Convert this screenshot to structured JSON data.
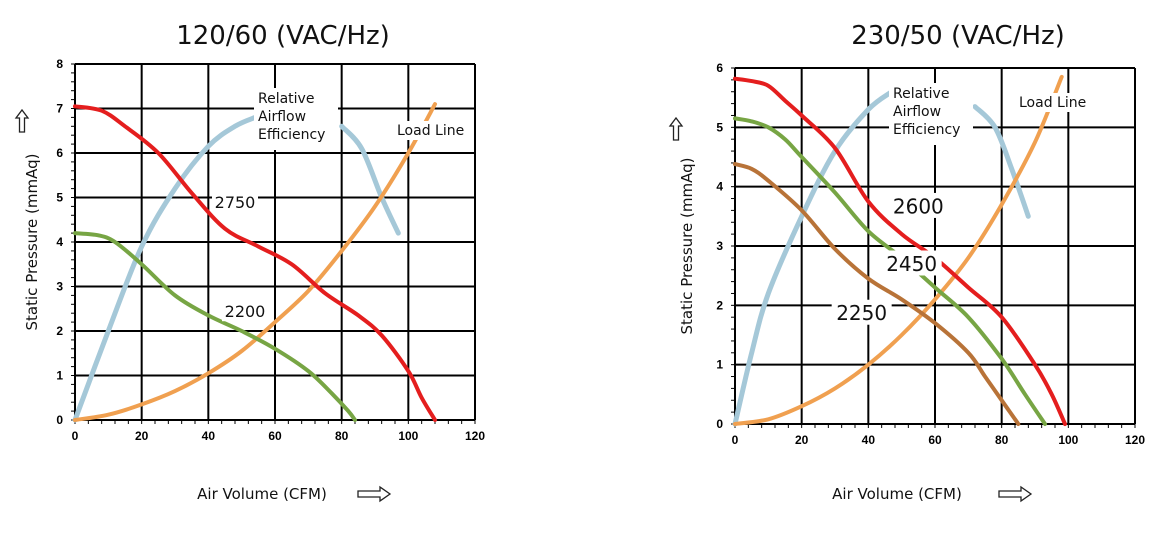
{
  "chart_data": [
    {
      "type": "line",
      "title": "120/60 (VAC/Hz)",
      "xlabel": "Air Volume (CFM)",
      "ylabel": "Static Pressure (mmAq)",
      "xlim": [
        0,
        120
      ],
      "ylim": [
        0,
        8
      ],
      "xticks": [
        "0",
        "20",
        "40",
        "60",
        "80",
        "100",
        "120"
      ],
      "yticks": [
        "0",
        "1",
        "2",
        "3",
        "4",
        "5",
        "6",
        "7",
        "8"
      ],
      "grid": true,
      "annotations": {
        "efficiency": [
          "Relative",
          "Airflow",
          "Efficiency"
        ],
        "load_line": "Load Line"
      },
      "series": [
        {
          "name": "2750",
          "color": "#e41e1e",
          "x": [
            0,
            8,
            15,
            25,
            35,
            45,
            55,
            65,
            75,
            85,
            92,
            100,
            104,
            108
          ],
          "y": [
            7.05,
            6.95,
            6.6,
            6.0,
            5.1,
            4.3,
            3.9,
            3.5,
            2.85,
            2.35,
            1.9,
            1.1,
            0.5,
            0.0
          ]
        },
        {
          "name": "2200",
          "color": "#77a544",
          "x": [
            0,
            7,
            12,
            20,
            30,
            40,
            50,
            60,
            70,
            77,
            82,
            84
          ],
          "y": [
            4.2,
            4.15,
            4.0,
            3.5,
            2.8,
            2.35,
            2.0,
            1.6,
            1.1,
            0.6,
            0.2,
            0.0
          ]
        },
        {
          "name": "Relative Airflow Efficiency",
          "color": "#a5c8d8",
          "x": [
            0,
            10,
            20,
            30,
            40,
            48,
            54,
            80,
            86,
            92,
            97
          ],
          "y": [
            0.0,
            2.0,
            3.9,
            5.2,
            6.15,
            6.6,
            6.8,
            6.6,
            6.1,
            5.0,
            4.2
          ]
        },
        {
          "name": "Load Line",
          "color": "#f0a050",
          "x": [
            0,
            10,
            20,
            30,
            40,
            50,
            60,
            70,
            80,
            90,
            100,
            108
          ],
          "y": [
            0.0,
            0.12,
            0.35,
            0.65,
            1.05,
            1.55,
            2.2,
            2.9,
            3.8,
            4.8,
            6.0,
            7.1
          ]
        }
      ],
      "curve_labels": [
        {
          "text": "2750",
          "x": 48,
          "y": 4.85
        },
        {
          "text": "2200",
          "x": 51,
          "y": 2.4
        }
      ]
    },
    {
      "type": "line",
      "title": "230/50 (VAC/Hz)",
      "xlabel": "Air Volume (CFM)",
      "ylabel": "Static Pressure (mmAq)",
      "xlim": [
        0,
        120
      ],
      "ylim": [
        0,
        6
      ],
      "xticks": [
        "0",
        "20",
        "40",
        "60",
        "80",
        "100",
        "120"
      ],
      "yticks": [
        "0",
        "1",
        "2",
        "3",
        "4",
        "5",
        "6"
      ],
      "grid": true,
      "annotations": {
        "efficiency": [
          "Relative",
          "Airflow",
          "Efficiency"
        ],
        "load_line": "Load Line"
      },
      "series": [
        {
          "name": "2600",
          "color": "#e41e1e",
          "x": [
            0,
            5,
            10,
            15,
            20,
            30,
            40,
            50,
            60,
            70,
            80,
            90,
            95,
            99
          ],
          "y": [
            5.82,
            5.78,
            5.7,
            5.45,
            5.2,
            4.65,
            3.75,
            3.2,
            2.8,
            2.3,
            1.8,
            1.0,
            0.5,
            0.0
          ]
        },
        {
          "name": "2450",
          "color": "#77a544",
          "x": [
            0,
            5,
            10,
            15,
            20,
            30,
            40,
            50,
            60,
            70,
            80,
            87,
            93
          ],
          "y": [
            5.15,
            5.1,
            5.0,
            4.8,
            4.5,
            3.9,
            3.25,
            2.8,
            2.3,
            1.8,
            1.1,
            0.5,
            0.0
          ]
        },
        {
          "name": "2250",
          "color": "#b87338",
          "x": [
            0,
            5,
            10,
            20,
            30,
            40,
            50,
            60,
            70,
            75,
            80,
            85
          ],
          "y": [
            4.38,
            4.3,
            4.1,
            3.6,
            2.95,
            2.45,
            2.1,
            1.7,
            1.2,
            0.8,
            0.4,
            0.0
          ]
        },
        {
          "name": "Relative Airflow Efficiency",
          "color": "#a5c8d8",
          "x": [
            0,
            5,
            10,
            20,
            30,
            40,
            47,
            72,
            78,
            83,
            88
          ],
          "y": [
            0.0,
            1.2,
            2.2,
            3.5,
            4.6,
            5.3,
            5.6,
            5.35,
            5.0,
            4.3,
            3.5
          ]
        },
        {
          "name": "Load Line",
          "color": "#f0a050",
          "x": [
            0,
            10,
            20,
            30,
            40,
            50,
            60,
            70,
            80,
            90,
            98
          ],
          "y": [
            0.0,
            0.08,
            0.3,
            0.6,
            1.0,
            1.5,
            2.1,
            2.8,
            3.7,
            4.75,
            5.85
          ]
        }
      ],
      "curve_labels": [
        {
          "text": "2600",
          "x": 55,
          "y": 3.65
        },
        {
          "text": "2450",
          "x": 53,
          "y": 2.68
        },
        {
          "text": "2250",
          "x": 38,
          "y": 1.85
        }
      ]
    }
  ]
}
